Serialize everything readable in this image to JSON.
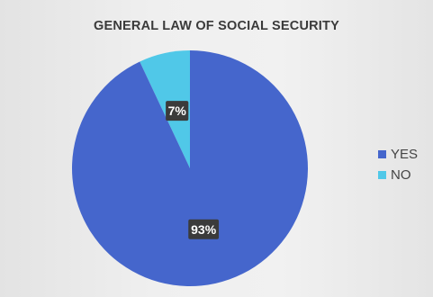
{
  "chart_data": {
    "type": "pie",
    "title": "GENERAL LAW OF SOCIAL SECURITY",
    "categories": [
      "YES",
      "NO"
    ],
    "values": [
      93,
      7
    ],
    "data_labels": [
      "93%",
      "7%"
    ],
    "colors": [
      "#4566cc",
      "#50c8e8"
    ],
    "legend_position": "right"
  }
}
